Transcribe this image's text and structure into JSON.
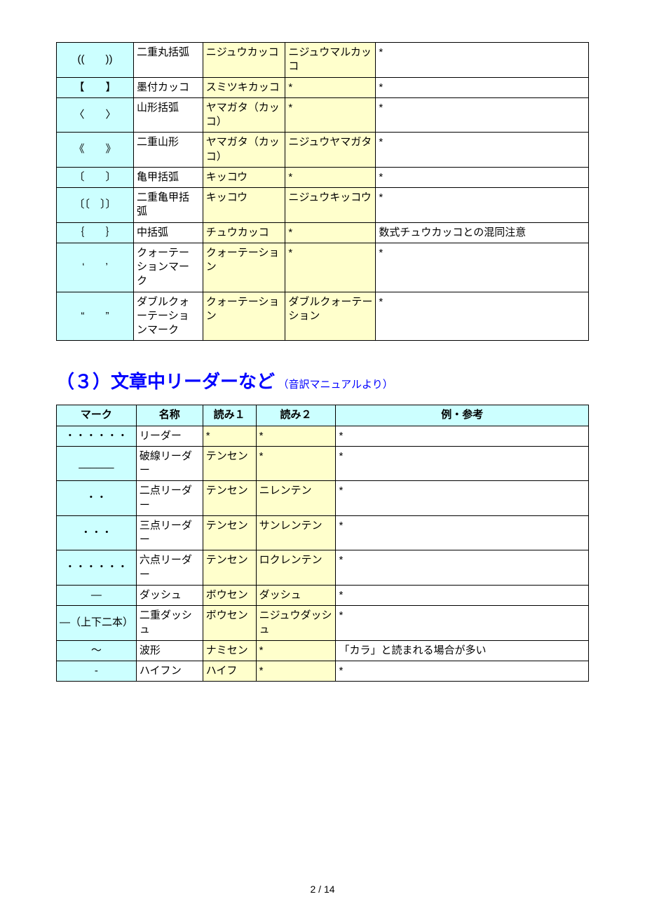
{
  "pageNumber": "2 / 14",
  "section3": {
    "titleMain": "（３）文章中リーダーなど",
    "titleSub": "（音訳マニュアルより）",
    "headers": [
      "マーク",
      "名称",
      "読み１",
      "読み２",
      "例・参考"
    ]
  },
  "table2_rows": [
    {
      "mark": "((　　))",
      "name": "二重丸括弧",
      "read1": "ニジュウカッコ",
      "read2": "ニジュウマルカッコ",
      "ref": "*"
    },
    {
      "mark": "【　　】",
      "name": "墨付カッコ",
      "read1": "スミツキカッコ",
      "read2": "*",
      "ref": "*"
    },
    {
      "mark": "〈　　〉",
      "name": "山形括弧",
      "read1": "ヤマガタ（カッコ）",
      "read2": "*",
      "ref": "*"
    },
    {
      "mark": "《　　》",
      "name": "二重山形",
      "read1": "ヤマガタ（カッコ）",
      "read2": "ニジュウヤマガタ",
      "ref": "*"
    },
    {
      "mark": "〔　　〕",
      "name": "亀甲括弧",
      "read1": "キッコウ",
      "read2": "*",
      "ref": "*"
    },
    {
      "mark": "〔〔　〕〕",
      "name": "二重亀甲括弧",
      "read1": "キッコウ",
      "read2": "ニジュウキッコウ",
      "ref": "*"
    },
    {
      "mark": "｛　　｝",
      "name": "中括弧",
      "read1": "チュウカッコ",
      "read2": "*",
      "ref": "数式チュウカッコとの混同注意"
    },
    {
      "mark": "‘　　’",
      "name": "クォーテーションマーク",
      "read1": "クォーテーション",
      "read2": "*",
      "ref": "*"
    },
    {
      "mark": "“　　”",
      "name": "ダブルクォーテーションマーク",
      "read1": "クォーテーション",
      "read2": "ダブルクォーテーション",
      "ref": "*"
    }
  ],
  "table3_rows": [
    {
      "mark": "・・・・・・",
      "name": "リーダー",
      "read1": "*",
      "read2": "*",
      "ref": "*"
    },
    {
      "mark": "______",
      "name": "破線リーダー",
      "read1": "テンセン",
      "read2": "*",
      "ref": "*"
    },
    {
      "mark": "・・",
      "name": "二点リーダー",
      "read1": "テンセン",
      "read2": "ニレンテン",
      "ref": "*"
    },
    {
      "mark": "・・・",
      "name": "三点リーダー",
      "read1": "テンセン",
      "read2": "サンレンテン",
      "ref": "*"
    },
    {
      "mark": "・・・・・・",
      "name": "六点リーダー",
      "read1": "テンセン",
      "read2": "ロクレンテン",
      "ref": "*"
    },
    {
      "mark": "―",
      "name": "ダッシュ",
      "read1": "ボウセン",
      "read2": "ダッシュ",
      "ref": "*"
    },
    {
      "mark": "―（上下二本）",
      "name": "二重ダッシュ",
      "read1": "ボウセン",
      "read2": "ニジュウダッシュ",
      "ref": "*"
    },
    {
      "mark": "～",
      "name": "波形",
      "read1": "ナミセン",
      "read2": "*",
      "ref": "「カラ」と読まれる場合が多い"
    },
    {
      "mark": "-",
      "name": "ハイフン",
      "read1": "ハイフ",
      "read2": "*",
      "ref": "*"
    }
  ],
  "colors": {
    "headerBg": "#ccffff",
    "readBg": "#ffffcc",
    "titleColor": "#0000ff",
    "border": "#000000",
    "pageBg": "#ffffff"
  }
}
